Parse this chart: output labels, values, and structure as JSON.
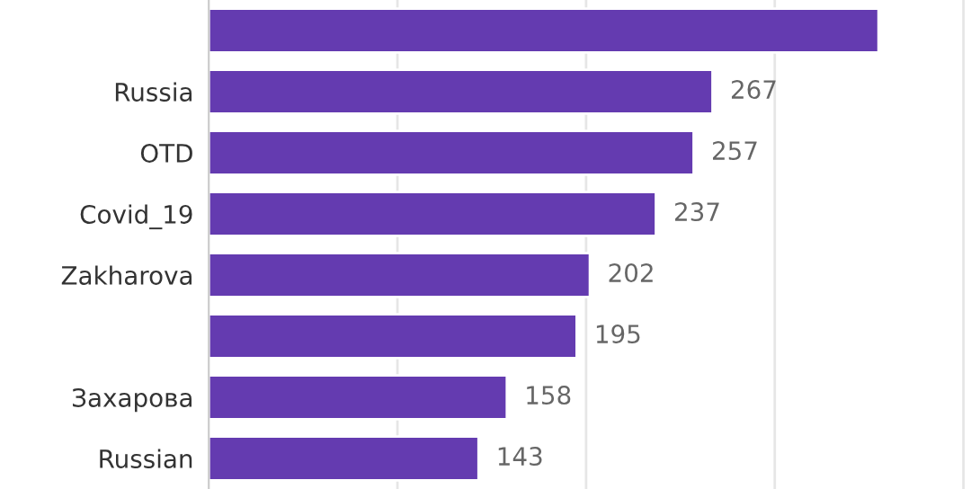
{
  "chart_data": {
    "type": "bar",
    "orientation": "horizontal",
    "categories": [
      null,
      "Russia",
      "OTD",
      "Covid_19",
      "Zakharova",
      null,
      "Захарова",
      "Russian"
    ],
    "values": [
      355,
      267,
      257,
      237,
      202,
      195,
      158,
      143
    ],
    "value_labels": [
      null,
      "267",
      "257",
      "237",
      "202",
      "195",
      "158",
      "143"
    ],
    "color": "#643bb0",
    "xticks": [
      {
        "value": 100,
        "label": null
      },
      {
        "value": 200,
        "label": null
      },
      {
        "value": 300,
        "label": null
      },
      {
        "value": 400,
        "label": null
      }
    ],
    "grid": "x",
    "legend": false
  }
}
